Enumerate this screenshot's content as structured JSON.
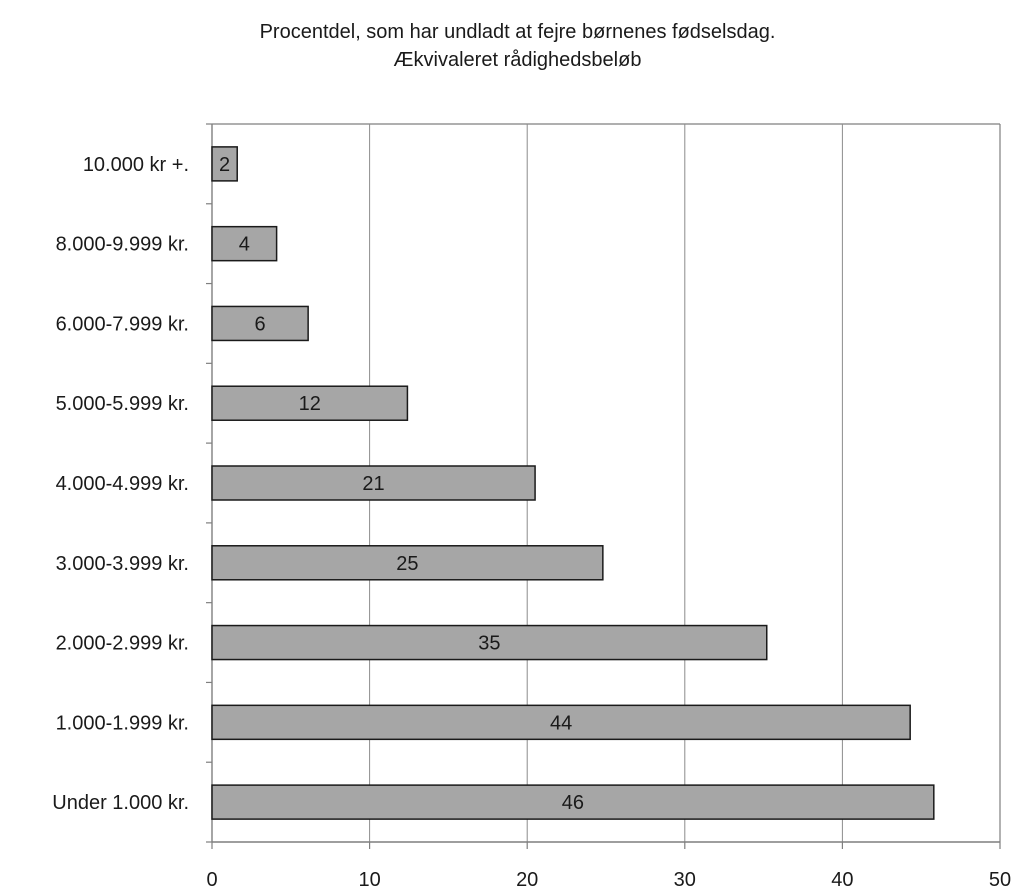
{
  "chart_data": {
    "type": "bar",
    "orientation": "horizontal",
    "title": "Procentdel, som har undladt at fejre børnenes fødselsdag.",
    "subtitle": "Ækvivaleret rådighedsbeløb",
    "xlabel": "",
    "ylabel": "",
    "categories": [
      "10.000 kr +.",
      "8.000-9.999 kr.",
      "6.000-7.999 kr.",
      "5.000-5.999 kr.",
      "4.000-4.999 kr.",
      "3.000-3.999 kr.",
      "2.000-2.999 kr.",
      "1.000-1.999 kr.",
      "Under 1.000 kr."
    ],
    "values": [
      1.6,
      4.1,
      6.1,
      12.4,
      20.5,
      24.8,
      35.2,
      44.3,
      45.8
    ],
    "data_labels": [
      "2",
      "4",
      "6",
      "12",
      "21",
      "25",
      "35",
      "44",
      "46"
    ],
    "xlim": [
      0,
      50
    ],
    "xticks": [
      0,
      10,
      20,
      30,
      40,
      50
    ],
    "grid": "vertical",
    "legend": "none",
    "colors": {
      "bar_fill": "#a6a6a6",
      "bar_stroke": "#1a1a1a",
      "grid": "#8c8c8c",
      "axis": "#7f7f7f"
    }
  }
}
